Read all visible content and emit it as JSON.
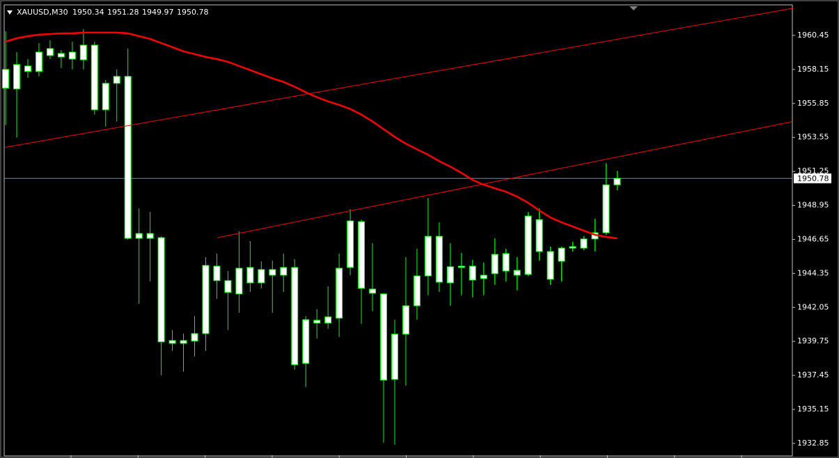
{
  "chart_data": {
    "type": "candlestick",
    "title": "XAUUSD,M30",
    "categories": [
      null,
      null,
      null,
      null,
      null,
      null,
      null,
      null,
      null,
      null,
      null,
      null,
      null,
      null,
      null,
      null,
      null,
      null,
      null,
      null,
      null,
      null,
      null,
      null,
      null,
      null,
      null,
      null,
      null,
      null,
      null,
      null,
      null,
      null,
      null,
      null,
      null,
      null,
      null,
      null,
      null,
      null,
      null,
      null,
      null,
      null,
      null,
      null,
      null,
      null,
      null,
      null,
      null,
      null,
      null,
      null
    ],
    "open": [
      1956.88,
      1956.83,
      1958.01,
      1958.01,
      1959.09,
      1958.99,
      1959.32,
      1958.8,
      1959.79,
      1955.42,
      1957.21,
      1957.68,
      1946.72,
      1947.05,
      1946.77,
      1939.81,
      1939.62,
      1939.77,
      1940.28,
      1944.84,
      1943.86,
      1942.96,
      1943.71,
      1944.61,
      1944.23,
      1944.75,
      1944.75,
      1938.26,
      1941.18,
      1940.99,
      1941.32,
      1944.75,
      1947.85,
      1943.29,
      1942.96,
      1937.18,
      1940.24,
      1942.16,
      1944.18,
      1946.86,
      1943.71,
      1944.75,
      1944.84,
      1944.0,
      1944.33,
      1945.69,
      1944.56,
      1944.28,
      1947.99,
      1945.83,
      1945.17,
      1946.06,
      1946.06,
      1946.68,
      1947.1,
      1950.34
    ],
    "high": [
      1960.73,
      1959.32,
      1958.85,
      1959.93,
      1960.12,
      1959.46,
      1960.03,
      1960.87,
      1960.03,
      1957.44,
      1958.15,
      1959.56,
      1948.74,
      1948.51,
      1946.86,
      1940.52,
      1940.28,
      1941.46,
      1945.45,
      1945.69,
      1944.51,
      1947.19,
      1946.53,
      1945.17,
      1945.22,
      1945.69,
      1945.31,
      1941.46,
      1941.93,
      1943.48,
      1945.69,
      1948.7,
      1947.99,
      1946.39,
      1943.01,
      1941.22,
      1945.45,
      1946.02,
      1949.45,
      1947.8,
      1946.39,
      1945.74,
      1945.27,
      1945.08,
      1946.72,
      1946.02,
      1945.45,
      1948.51,
      1948.74,
      1946.16,
      1946.16,
      1946.49,
      1946.86,
      1948.04,
      1951.8,
      1951.28
    ],
    "low": [
      1954.39,
      1953.54,
      1957.58,
      1957.68,
      1958.85,
      1958.24,
      1958.15,
      1958.15,
      1955.09,
      1954.29,
      1954.62,
      1946.63,
      1942.3,
      1943.81,
      1937.46,
      1939.11,
      1937.7,
      1938.73,
      1939.11,
      1942.63,
      1940.52,
      1941.69,
      1943.1,
      1943.34,
      1941.69,
      1943.1,
      1937.84,
      1936.66,
      1939.95,
      1940.61,
      1940.05,
      1944.23,
      1940.94,
      1941.79,
      1932.9,
      1932.76,
      1936.76,
      1941.22,
      1942.87,
      1943.1,
      1942.16,
      1942.87,
      1942.73,
      1942.87,
      1943.57,
      1943.81,
      1943.2,
      1944.18,
      1945.22,
      1943.57,
      1943.81,
      1945.83,
      1945.92,
      1945.83,
      1946.96,
      1949.97
    ],
    "close": [
      1958.15,
      1958.48,
      1958.38,
      1959.32,
      1959.56,
      1959.23,
      1958.85,
      1959.79,
      1955.42,
      1957.21,
      1957.68,
      1946.72,
      1947.05,
      1946.72,
      1939.72,
      1939.62,
      1939.81,
      1940.28,
      1944.89,
      1943.86,
      1943.06,
      1944.7,
      1944.75,
      1943.71,
      1944.61,
      1944.23,
      1938.17,
      1941.22,
      1940.99,
      1941.41,
      1944.7,
      1947.9,
      1943.34,
      1943.01,
      1937.13,
      1940.24,
      1942.16,
      1944.18,
      1946.86,
      1943.76,
      1944.8,
      1944.84,
      1943.9,
      1944.23,
      1945.64,
      1944.51,
      1944.23,
      1948.23,
      1945.83,
      1943.95,
      1946.06,
      1946.16,
      1946.68,
      1947.1,
      1950.34,
      1950.78
    ],
    "body_color": "#ffffff",
    "wick_color": "#00ff00",
    "ma": {
      "color": "#ff0000",
      "values": [
        1960.03,
        1960.26,
        1960.4,
        1960.5,
        1960.54,
        1960.59,
        1960.59,
        1960.64,
        1960.64,
        1960.64,
        1960.64,
        1960.59,
        1960.4,
        1960.21,
        1959.93,
        1959.65,
        1959.37,
        1959.18,
        1958.99,
        1958.85,
        1958.66,
        1958.38,
        1958.1,
        1957.82,
        1957.54,
        1957.3,
        1956.97,
        1956.6,
        1956.27,
        1955.98,
        1955.75,
        1955.47,
        1955.09,
        1954.62,
        1954.1,
        1953.58,
        1953.12,
        1952.74,
        1952.37,
        1951.94,
        1951.57,
        1951.14,
        1950.67,
        1950.34,
        1950.11,
        1949.87,
        1949.54,
        1949.12,
        1948.6,
        1948.13,
        1947.8,
        1947.52,
        1947.24,
        1946.96,
        1946.82,
        1946.72
      ]
    },
    "current_price": 1950.78,
    "ylim": [
      1932.05,
      1962.47
    ],
    "yticks": [
      1960.45,
      1958.15,
      1955.85,
      1953.55,
      1951.25,
      1948.95,
      1946.65,
      1944.35,
      1942.05,
      1939.75,
      1937.45,
      1935.15,
      1932.85
    ]
  }
}
